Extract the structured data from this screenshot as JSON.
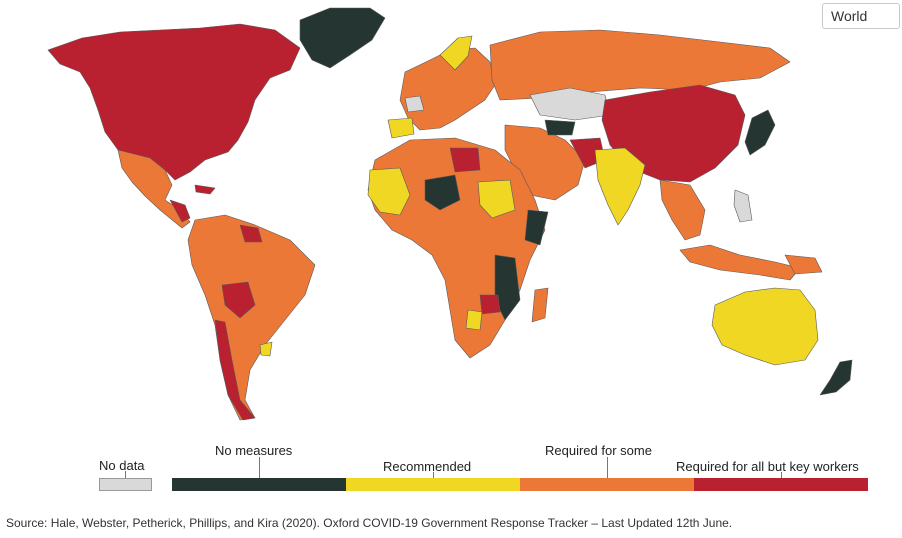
{
  "region_selector": {
    "value": "World"
  },
  "legend": {
    "no_data": {
      "label": "No data",
      "color": "#d9d9d9"
    },
    "categories": [
      {
        "label": "No measures",
        "color": "#253531"
      },
      {
        "label": "Recommended",
        "color": "#efd724"
      },
      {
        "label": "Required for some",
        "color": "#ec7838"
      },
      {
        "label": "Required for all but key workers",
        "color": "#b92131"
      }
    ]
  },
  "source": "Source: Hale, Webster, Petherick, Phillips, and Kira (2020). Oxford COVID-19 Government Response Tracker – Last Updated 12th June."
}
